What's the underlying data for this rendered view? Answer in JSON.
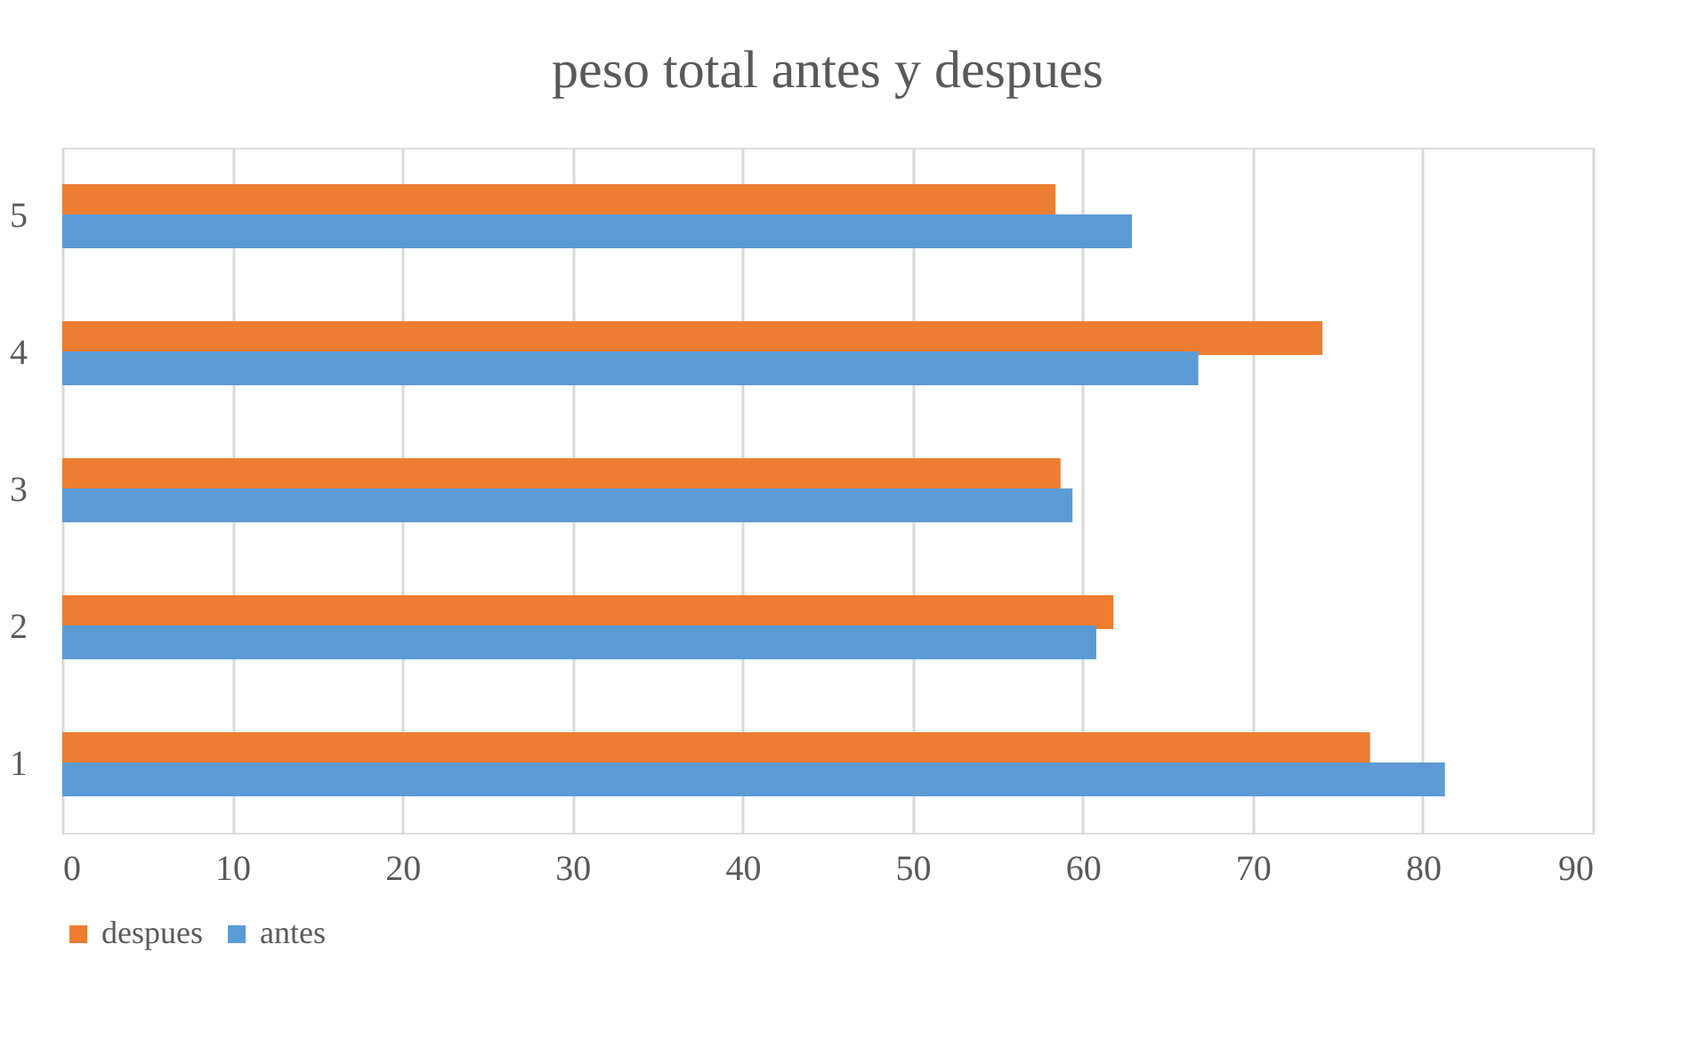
{
  "chart_data": {
    "type": "bar",
    "orientation": "horizontal",
    "title": "peso total antes y despues",
    "categories": [
      "5",
      "4",
      "3",
      "2",
      "1"
    ],
    "series": [
      {
        "name": "despues",
        "color": "#ed7d31",
        "values": [
          58.4,
          74.1,
          58.7,
          61.8,
          76.9
        ]
      },
      {
        "name": "antes",
        "color": "#5b9bd5",
        "values": [
          62.9,
          66.8,
          59.4,
          60.8,
          81.3
        ]
      }
    ],
    "xlim": [
      0,
      90
    ],
    "xticks": [
      0,
      10,
      20,
      30,
      40,
      50,
      60,
      70,
      80,
      90
    ],
    "grid": "x",
    "legend": "bottom"
  }
}
